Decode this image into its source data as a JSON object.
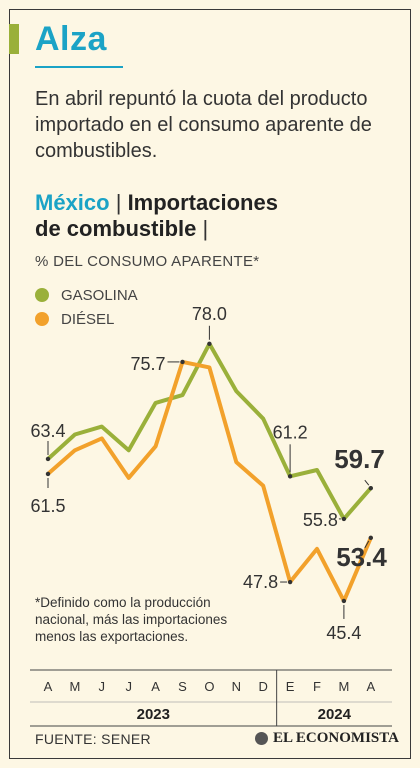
{
  "headline": "Alza",
  "subtitle": "En abril repuntó la cuota del producto importado en el consumo aparente de combustibles.",
  "section_title": {
    "country": "México",
    "separator": "|",
    "title_part1": "Importaciones",
    "title_part2": "de combustible",
    "trailing_separator": "|"
  },
  "unit_label": "% DEL CONSUMO APARENTE*",
  "legend": [
    {
      "label": "GASOLINA",
      "color": "#9ab03a"
    },
    {
      "label": "DIÉSEL",
      "color": "#f2a12b"
    }
  ],
  "footnote": "*Definido como la producción nacional, más las importaciones menos las exportaciones.",
  "source": "FUENTE: SENER",
  "brand": "EL ECONOMISTA",
  "colors": {
    "accent": "#1ba3c6",
    "gasolina": "#9ab03a",
    "diesel": "#f2a12b",
    "background": "#fdf7e4"
  },
  "chart_data": {
    "type": "line",
    "categories": [
      "A",
      "M",
      "J",
      "J",
      "A",
      "S",
      "O",
      "N",
      "D",
      "E",
      "F",
      "M",
      "A"
    ],
    "year_labels": [
      "2023",
      "2024"
    ],
    "year_split_after_index": 8,
    "series": [
      {
        "name": "GASOLINA",
        "values": [
          63.4,
          66.5,
          67.5,
          64.5,
          70.5,
          71.5,
          78.0,
          72.0,
          68.5,
          61.2,
          62.0,
          55.8,
          59.7
        ]
      },
      {
        "name": "DIÉSEL",
        "values": [
          61.5,
          64.5,
          66.0,
          61.0,
          65.0,
          75.7,
          75.0,
          63.0,
          60.0,
          47.8,
          52.0,
          45.4,
          53.4
        ]
      }
    ],
    "annotations": [
      {
        "label": "63.4",
        "series": 0,
        "index": 0
      },
      {
        "label": "61.5",
        "series": 1,
        "index": 0
      },
      {
        "label": "75.7",
        "series": 1,
        "index": 5
      },
      {
        "label": "78.0",
        "series": 0,
        "index": 6
      },
      {
        "label": "61.2",
        "series": 0,
        "index": 9
      },
      {
        "label": "47.8",
        "series": 1,
        "index": 9
      },
      {
        "label": "55.8",
        "series": 0,
        "index": 11
      },
      {
        "label": "45.4",
        "series": 1,
        "index": 11
      },
      {
        "label": "59.7",
        "series": 0,
        "index": 12
      },
      {
        "label": "53.4",
        "series": 1,
        "index": 12
      }
    ],
    "ylim": [
      44,
      80
    ],
    "grid": false
  }
}
